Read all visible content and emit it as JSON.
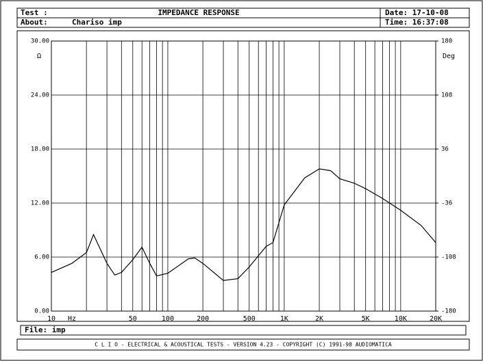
{
  "header": {
    "test": "Test :",
    "title": "IMPEDANCE RESPONSE",
    "date": "Date: 17-10-08",
    "about": "About:",
    "about_text": "Chariso imp",
    "time": "Time: 16:37:08"
  },
  "footer": {
    "file": "File: imp",
    "banner": "C L I O  -  ELECTRICAL & ACOUSTICAL TESTS  -  VERSION 4.23  -  COPYRIGHT (C) 1991-98 AUDIOMATICA"
  },
  "chart_data": {
    "type": "line",
    "color": "#000000",
    "x_log": true,
    "grid": true,
    "y_unit": "Ω",
    "y2_unit": "Deg",
    "x_unit": "Hz",
    "x": [
      10,
      15,
      20,
      23,
      30,
      35,
      40,
      50,
      60,
      70,
      80,
      100,
      150,
      170,
      200,
      300,
      400,
      500,
      700,
      800,
      1000,
      1500,
      2000,
      2500,
      3000,
      4000,
      5000,
      7000,
      10000,
      15000,
      20000
    ],
    "values": [
      4.3,
      5.3,
      6.5,
      8.5,
      5.3,
      4.0,
      4.3,
      5.7,
      7.1,
      5.3,
      3.9,
      4.2,
      5.8,
      5.9,
      5.3,
      3.4,
      3.6,
      4.9,
      7.2,
      7.6,
      11.8,
      14.8,
      15.8,
      15.6,
      14.7,
      14.2,
      13.6,
      12.5,
      11.2,
      9.5,
      7.6
    ],
    "xlim": [
      10,
      20000
    ],
    "ylim": [
      0,
      30
    ],
    "y2lim": [
      -180,
      180
    ],
    "xticks": [
      10,
      50,
      100,
      200,
      500,
      {
        "value": 1000,
        "label": "1K"
      },
      {
        "value": 2000,
        "label": "2K"
      },
      {
        "value": 5000,
        "label": "5K"
      },
      {
        "value": 10000,
        "label": "10K"
      },
      {
        "value": 20000,
        "label": "20K"
      }
    ],
    "xgrid": [
      20,
      30,
      40,
      60,
      70,
      80,
      90,
      300,
      400,
      600,
      700,
      800,
      900,
      3000,
      4000,
      6000,
      7000,
      8000,
      9000
    ],
    "yticks": [
      {
        "value": 0,
        "label": "0.00"
      },
      {
        "value": 6,
        "label": "6.00"
      },
      {
        "value": 12,
        "label": "12.00"
      },
      {
        "value": 18,
        "label": "18.00"
      },
      {
        "value": 24,
        "label": "24.00"
      },
      {
        "value": 30,
        "label": "30.00"
      }
    ],
    "y2ticks": [
      -180,
      -108,
      -36,
      36,
      108,
      180
    ]
  }
}
